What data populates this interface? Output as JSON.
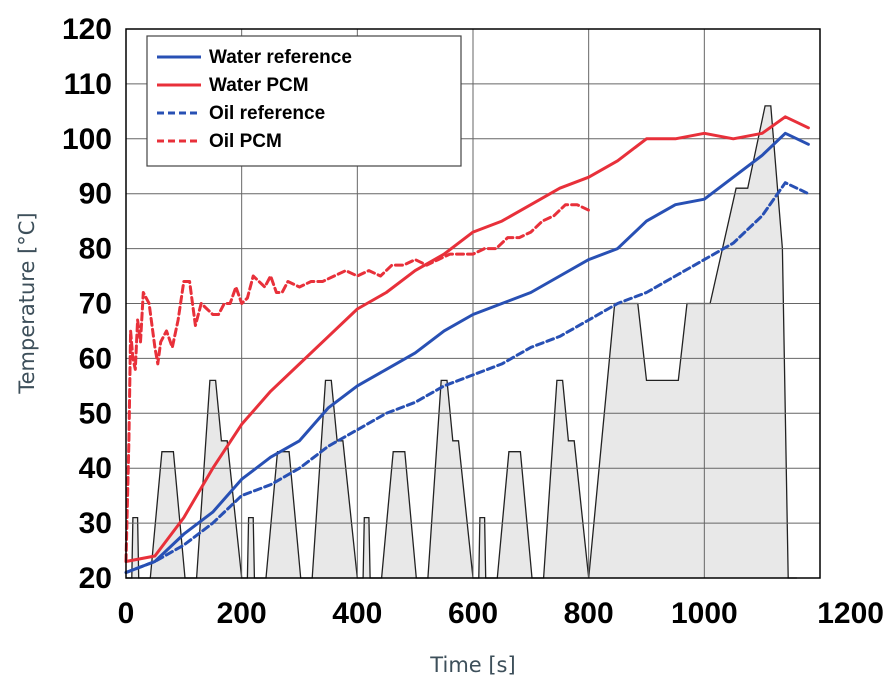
{
  "chart_data": {
    "type": "line",
    "title": "",
    "xlabel": "Time [s]",
    "ylabel": "Temperature [°C]",
    "xlim": [
      0,
      1200
    ],
    "ylim": [
      20,
      120
    ],
    "x_ticks": [
      0,
      200,
      400,
      600,
      800,
      1000,
      1200
    ],
    "y_ticks": [
      20,
      30,
      40,
      50,
      60,
      70,
      80,
      90,
      100,
      110,
      120
    ],
    "grid": true,
    "legend_position": "top-left",
    "background_profile": {
      "fill": "#e8e8e8",
      "points": [
        [
          0,
          20
        ],
        [
          10,
          20
        ],
        [
          12,
          31
        ],
        [
          20,
          31
        ],
        [
          22,
          20
        ],
        [
          42,
          20
        ],
        [
          62,
          43
        ],
        [
          82,
          43
        ],
        [
          102,
          20
        ],
        [
          122,
          20
        ],
        [
          145,
          56
        ],
        [
          155,
          56
        ],
        [
          165,
          45
        ],
        [
          175,
          45
        ],
        [
          200,
          20
        ],
        [
          210,
          20
        ],
        [
          212,
          31
        ],
        [
          220,
          31
        ],
        [
          222,
          20
        ],
        [
          242,
          20
        ],
        [
          262,
          43
        ],
        [
          282,
          43
        ],
        [
          302,
          20
        ],
        [
          322,
          20
        ],
        [
          345,
          56
        ],
        [
          355,
          56
        ],
        [
          365,
          45
        ],
        [
          375,
          45
        ],
        [
          400,
          20
        ],
        [
          410,
          20
        ],
        [
          412,
          31
        ],
        [
          420,
          31
        ],
        [
          422,
          20
        ],
        [
          442,
          20
        ],
        [
          462,
          43
        ],
        [
          482,
          43
        ],
        [
          502,
          20
        ],
        [
          522,
          20
        ],
        [
          545,
          56
        ],
        [
          555,
          56
        ],
        [
          565,
          45
        ],
        [
          575,
          45
        ],
        [
          600,
          20
        ],
        [
          610,
          20
        ],
        [
          612,
          31
        ],
        [
          620,
          31
        ],
        [
          622,
          20
        ],
        [
          642,
          20
        ],
        [
          662,
          43
        ],
        [
          682,
          43
        ],
        [
          702,
          20
        ],
        [
          722,
          20
        ],
        [
          745,
          56
        ],
        [
          755,
          56
        ],
        [
          765,
          45
        ],
        [
          775,
          45
        ],
        [
          800,
          20
        ],
        [
          845,
          70
        ],
        [
          885,
          70
        ],
        [
          900,
          56
        ],
        [
          955,
          56
        ],
        [
          970,
          70
        ],
        [
          1010,
          70
        ],
        [
          1055,
          91
        ],
        [
          1075,
          91
        ],
        [
          1105,
          106
        ],
        [
          1115,
          106
        ],
        [
          1135,
          80
        ],
        [
          1145,
          20
        ],
        [
          1160,
          20
        ]
      ]
    },
    "series": [
      {
        "name": "Water reference",
        "color": "#2850b4",
        "dash": "solid",
        "x": [
          0,
          50,
          100,
          150,
          200,
          250,
          300,
          350,
          400,
          450,
          500,
          550,
          600,
          650,
          700,
          750,
          800,
          850,
          900,
          950,
          1000,
          1050,
          1100,
          1140,
          1160,
          1180
        ],
        "y": [
          21,
          23,
          28,
          32,
          38,
          42,
          45,
          51,
          55,
          58,
          61,
          65,
          68,
          70,
          72,
          75,
          78,
          80,
          85,
          88,
          89,
          93,
          97,
          101,
          100,
          99
        ]
      },
      {
        "name": "Water PCM",
        "color": "#e8303a",
        "dash": "solid",
        "x": [
          0,
          50,
          100,
          150,
          200,
          250,
          300,
          350,
          400,
          450,
          500,
          550,
          600,
          650,
          700,
          750,
          800,
          850,
          900,
          950,
          1000,
          1050,
          1100,
          1140,
          1160,
          1180
        ],
        "y": [
          23,
          24,
          31,
          40,
          48,
          54,
          59,
          64,
          69,
          72,
          76,
          79,
          83,
          85,
          88,
          91,
          93,
          96,
          100,
          100,
          101,
          100,
          101,
          104,
          103,
          102
        ]
      },
      {
        "name": "Oil reference",
        "color": "#2850b4",
        "dash": "dashed",
        "x": [
          0,
          50,
          100,
          150,
          200,
          250,
          300,
          350,
          400,
          450,
          500,
          550,
          600,
          650,
          700,
          750,
          800,
          850,
          900,
          950,
          1000,
          1050,
          1100,
          1140,
          1160,
          1180
        ],
        "y": [
          21,
          23,
          26,
          30,
          35,
          37,
          40,
          44,
          47,
          50,
          52,
          55,
          57,
          59,
          62,
          64,
          67,
          70,
          72,
          75,
          78,
          81,
          86,
          92,
          91,
          90
        ]
      },
      {
        "name": "Oil PCM",
        "color": "#e8303a",
        "dash": "dashed",
        "x": [
          0,
          5,
          8,
          12,
          16,
          20,
          25,
          30,
          40,
          50,
          55,
          60,
          70,
          80,
          90,
          100,
          110,
          120,
          130,
          140,
          150,
          160,
          170,
          180,
          190,
          200,
          210,
          220,
          230,
          240,
          250,
          260,
          270,
          280,
          300,
          320,
          340,
          360,
          380,
          400,
          420,
          440,
          460,
          480,
          500,
          520,
          540,
          560,
          580,
          600,
          620,
          640,
          660,
          680,
          700,
          720,
          740,
          760,
          780,
          800
        ],
        "y": [
          23,
          45,
          65,
          60,
          58,
          67,
          63,
          72,
          70,
          62,
          59,
          63,
          65,
          62,
          67,
          74,
          74,
          66,
          70,
          69,
          68,
          68,
          70,
          70,
          73,
          70,
          71,
          75,
          74,
          73,
          75,
          72,
          72,
          74,
          73,
          74,
          74,
          75,
          76,
          75,
          76,
          75,
          77,
          77,
          78,
          77,
          78,
          79,
          79,
          79,
          80,
          80,
          82,
          82,
          83,
          85,
          86,
          88,
          88,
          87
        ]
      }
    ]
  }
}
